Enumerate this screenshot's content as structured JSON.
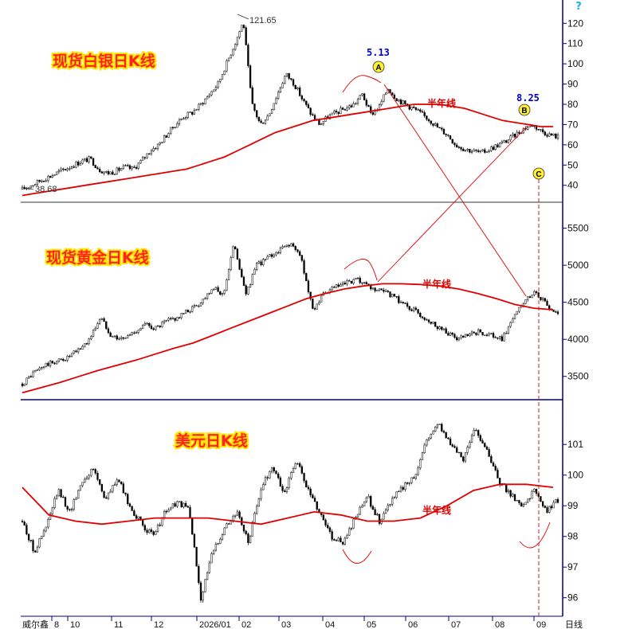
{
  "chart_data": [
    {
      "type": "line",
      "title": "现货白银日K线",
      "ma_label": "半年线",
      "y_ticks": [
        40,
        50,
        60,
        70,
        80,
        90,
        100,
        110,
        120
      ],
      "ylim": [
        34,
        126
      ],
      "extreme_high_label": "121.65",
      "extreme_low_label": "38.68",
      "annotations": [
        {
          "marker": "A",
          "date_label": "5.13"
        },
        {
          "marker": "B",
          "date_label": "8.25"
        },
        {
          "marker": "C"
        }
      ],
      "close": [
        38,
        40,
        42,
        44,
        46,
        48,
        50,
        52,
        53,
        48,
        46,
        47,
        49,
        48,
        52,
        57,
        60,
        65,
        70,
        74,
        76,
        80,
        85,
        90,
        100,
        110,
        121,
        80,
        70,
        75,
        85,
        95,
        90,
        82,
        75,
        70,
        74,
        76,
        78,
        80,
        85,
        75,
        79,
        88,
        83,
        80,
        78,
        75,
        72,
        68,
        65,
        60,
        58,
        57,
        56,
        58,
        60,
        62,
        65,
        68,
        70,
        67,
        65,
        64
      ],
      "ma": [
        35,
        36,
        37,
        38,
        39,
        40,
        41,
        42,
        43,
        44,
        45,
        46,
        47,
        48,
        50,
        52,
        54,
        57,
        60,
        63,
        66,
        68,
        70,
        72,
        73,
        74,
        75,
        76,
        77,
        78,
        79,
        80,
        80,
        80,
        79,
        78,
        76,
        74,
        72,
        71,
        70,
        69,
        69
      ]
    },
    {
      "type": "line",
      "title": "现货黄金日K线",
      "ma_label": "半年线",
      "y_ticks": [
        3500,
        4000,
        4500,
        5000,
        5500
      ],
      "ylim": [
        3250,
        5700
      ],
      "close": [
        3400,
        3550,
        3650,
        3700,
        3750,
        3850,
        4000,
        4300,
        4050,
        4000,
        4100,
        4200,
        4150,
        4250,
        4300,
        4400,
        4500,
        4700,
        4600,
        5300,
        4600,
        5000,
        5100,
        5200,
        5300,
        5100,
        4400,
        4600,
        4700,
        4750,
        4800,
        4700,
        4650,
        4600,
        4500,
        4400,
        4300,
        4200,
        4100,
        4000,
        4050,
        4100,
        4050,
        4000,
        4300,
        4500,
        4650,
        4450,
        4350
      ],
      "ma": [
        3280,
        3350,
        3420,
        3500,
        3580,
        3650,
        3720,
        3800,
        3880,
        3950,
        4050,
        4150,
        4250,
        4350,
        4450,
        4550,
        4620,
        4680,
        4720,
        4750,
        4750,
        4740,
        4720,
        4680,
        4620,
        4550,
        4470,
        4420,
        4400
      ]
    },
    {
      "type": "line",
      "title": "美元日K线",
      "ma_label": "半年线",
      "y_ticks": [
        96,
        97,
        98,
        99,
        100,
        101
      ],
      "ylim": [
        95.5,
        102.2
      ],
      "close": [
        98.5,
        97.5,
        98.3,
        99.5,
        98.8,
        99.8,
        100.2,
        99.2,
        99.9,
        99.0,
        98.4,
        98.0,
        98.8,
        99.1,
        98.9,
        96.0,
        97.5,
        98.3,
        98.8,
        97.8,
        99.5,
        100.3,
        99.4,
        100.5,
        99.5,
        98.8,
        98.0,
        97.8,
        98.6,
        99.3,
        98.5,
        99.2,
        99.6,
        100.0,
        101.2,
        101.7,
        101.0,
        100.5,
        101.5,
        100.9,
        99.8,
        99.4,
        99.0,
        99.5,
        98.8,
        99.2
      ],
      "ma": [
        99.6,
        98.7,
        98.5,
        98.4,
        98.5,
        98.6,
        98.6,
        98.6,
        98.5,
        98.4,
        98.6,
        98.8,
        98.7,
        98.5,
        98.5,
        98.6,
        99.0,
        99.5,
        99.7,
        99.7,
        99.6
      ]
    }
  ],
  "x_axis": {
    "labels": [
      "8",
      "10",
      "11",
      "12",
      "2026/01",
      "02",
      "03",
      "04",
      "05",
      "06",
      "07",
      "08",
      "09"
    ],
    "unit_label": "日线"
  },
  "footer": {
    "source": "威尔鑫"
  },
  "corner_icon": "question-mark-icon",
  "colors": {
    "candle": "#000000",
    "ma": "#e00000",
    "title_text": "#ff2020",
    "title_outline": "#ffe600",
    "marker_fill": "#fff033",
    "axis": "#000080"
  }
}
